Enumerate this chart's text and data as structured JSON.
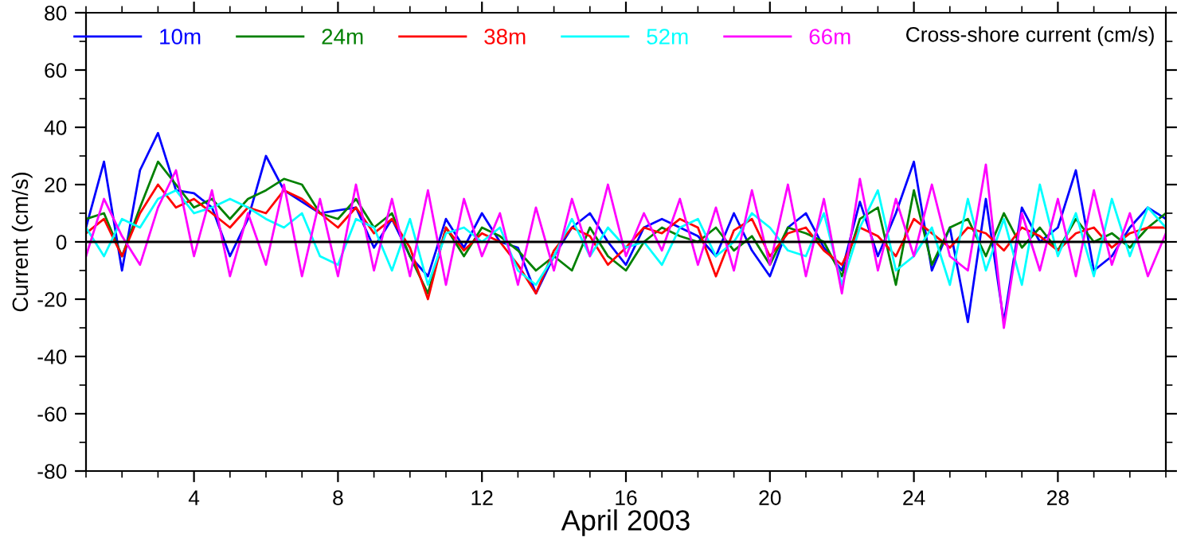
{
  "chart_data": {
    "type": "line",
    "xlabel": "April 2003",
    "ylabel": "Current (cm/s)",
    "annotations": [
      "Cross-shore current (cm/s)"
    ],
    "x": [
      1,
      1.5,
      2,
      2.5,
      3,
      3.5,
      4,
      4.5,
      5,
      5.5,
      6,
      6.5,
      7,
      7.5,
      8,
      8.5,
      9,
      9.5,
      10,
      10.5,
      11,
      11.5,
      12,
      12.5,
      13,
      13.5,
      14,
      14.5,
      15,
      15.5,
      16,
      16.5,
      17,
      17.5,
      18,
      18.5,
      19,
      19.5,
      20,
      20.5,
      21,
      21.5,
      22,
      22.5,
      23,
      23.5,
      24,
      24.5,
      25,
      25.5,
      26,
      26.5,
      27,
      27.5,
      28,
      28.5,
      29,
      29.5,
      30,
      30.5,
      31
    ],
    "series": [
      {
        "name": "10m",
        "color": "#0000ff",
        "values": [
          5,
          28,
          -10,
          25,
          38,
          18,
          17,
          12,
          -5,
          8,
          30,
          18,
          14,
          10,
          11,
          12,
          -2,
          8,
          -5,
          -12,
          8,
          -2,
          10,
          0,
          -2,
          -18,
          -5,
          5,
          10,
          0,
          -8,
          5,
          8,
          5,
          2,
          -5,
          10,
          -3,
          -12,
          5,
          10,
          -2,
          -10,
          14,
          -5,
          10,
          28,
          -10,
          5,
          -28,
          15,
          -28,
          12,
          0,
          5,
          25,
          -10,
          -5,
          5,
          12,
          8
        ]
      },
      {
        "name": "24m",
        "color": "#008000",
        "values": [
          8,
          10,
          -5,
          12,
          28,
          20,
          12,
          15,
          8,
          15,
          18,
          22,
          20,
          10,
          8,
          15,
          5,
          10,
          -5,
          -18,
          5,
          -5,
          5,
          2,
          -3,
          -10,
          -5,
          -10,
          5,
          -5,
          -10,
          0,
          5,
          2,
          0,
          5,
          -3,
          2,
          -8,
          5,
          3,
          0,
          -12,
          8,
          12,
          -15,
          18,
          -8,
          5,
          8,
          -5,
          10,
          -2,
          5,
          -3,
          8,
          0,
          3,
          -2,
          5,
          10
        ]
      },
      {
        "name": "38m",
        "color": "#ff0000",
        "values": [
          3,
          8,
          -5,
          10,
          20,
          12,
          15,
          10,
          5,
          12,
          10,
          18,
          15,
          10,
          5,
          12,
          3,
          8,
          -2,
          -20,
          5,
          -3,
          3,
          0,
          -8,
          -18,
          -3,
          5,
          2,
          -8,
          -2,
          5,
          3,
          8,
          5,
          -12,
          4,
          8,
          -5,
          3,
          5,
          -3,
          -8,
          5,
          2,
          -5,
          8,
          3,
          -2,
          5,
          3,
          -3,
          5,
          2,
          -3,
          3,
          5,
          -2,
          3,
          5,
          5
        ]
      },
      {
        "name": "52m",
        "color": "#00ffff",
        "values": [
          5,
          -5,
          8,
          5,
          15,
          18,
          10,
          12,
          15,
          12,
          8,
          5,
          10,
          -5,
          -8,
          8,
          5,
          -10,
          8,
          -15,
          3,
          5,
          0,
          5,
          -10,
          -15,
          -5,
          8,
          -5,
          5,
          -2,
          0,
          -8,
          5,
          8,
          -5,
          0,
          10,
          5,
          -3,
          -5,
          10,
          -15,
          5,
          18,
          -10,
          -5,
          5,
          -15,
          15,
          -10,
          8,
          -15,
          20,
          -5,
          10,
          -12,
          15,
          -5,
          12,
          5
        ]
      },
      {
        "name": "66m",
        "color": "#ff00ff",
        "values": [
          -5,
          15,
          2,
          -8,
          12,
          25,
          -5,
          18,
          -12,
          10,
          -8,
          20,
          -12,
          15,
          -12,
          20,
          -10,
          15,
          -12,
          18,
          -15,
          15,
          -5,
          10,
          -15,
          12,
          -10,
          15,
          -5,
          20,
          -5,
          10,
          -3,
          15,
          -8,
          12,
          -10,
          18,
          -8,
          20,
          -12,
          15,
          -18,
          22,
          -10,
          15,
          -5,
          20,
          -5,
          -10,
          27,
          -30,
          10,
          -10,
          15,
          -12,
          18,
          -8,
          10,
          -12,
          3
        ]
      }
    ],
    "xlim": [
      1,
      31
    ],
    "xticks": [
      4,
      8,
      12,
      16,
      20,
      24,
      28
    ],
    "ylim": [
      -80,
      80
    ],
    "yticks": [
      -80,
      -60,
      -40,
      -20,
      0,
      20,
      40,
      60,
      80
    ],
    "ref_lines": [
      {
        "axis": "y",
        "value": 0,
        "color": "#000000"
      }
    ],
    "grid": false,
    "legend": "top left",
    "marker": "none",
    "line_style": "solid"
  }
}
